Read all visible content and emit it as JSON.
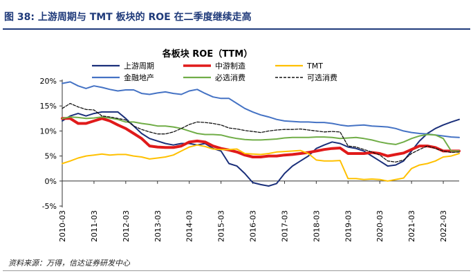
{
  "figure": {
    "label": "图 38: 上游周期与 TMT 板块的 ROE 在二季度继续走高",
    "source": "资料来源：万得，信达证券研发中心"
  },
  "chart_data": {
    "type": "line",
    "title": "各板块 ROE（TTM）",
    "xlabel": "",
    "ylabel": "",
    "ylim": [
      -5,
      20
    ],
    "yticks": [
      "20%",
      "15%",
      "10%",
      "5%",
      "0%",
      "-5%"
    ],
    "ytick_values": [
      20,
      15,
      10,
      5,
      0,
      -5
    ],
    "grid": false,
    "legend_position": "top",
    "x_start": "2010-03",
    "x_end": "2022-06",
    "x_tick_labels": [
      "2010-03",
      "2011-03",
      "2012-03",
      "2013-03",
      "2014-03",
      "2015-03",
      "2016-03",
      "2017-03",
      "2018-03",
      "2019-03",
      "2020-03",
      "2021-03",
      "2022-03"
    ],
    "series": [
      {
        "name": "上游周期",
        "color": "#1a2f7a",
        "dash": "solid",
        "width": 2,
        "values": [
          12,
          13,
          13.5,
          13,
          13.5,
          13.8,
          13.8,
          13.8,
          12.5,
          11,
          9.5,
          8.5,
          8,
          7.5,
          7.2,
          7.5,
          7.5,
          7.2,
          7.5,
          6.5,
          6,
          3.5,
          3,
          1.5,
          -0.3,
          -0.7,
          -1,
          -0.5,
          1.5,
          3,
          4,
          5,
          6.5,
          7.2,
          7.8,
          7.5,
          6.8,
          6.5,
          6,
          5,
          4,
          3,
          3.2,
          4,
          6,
          8,
          9.5,
          10.5,
          11.2,
          11.8,
          12.3
        ]
      },
      {
        "name": "中游制造",
        "color": "#e01a1a",
        "dash": "solid",
        "width": 4,
        "values": [
          12.5,
          12.5,
          11.5,
          11.5,
          12,
          12.5,
          12,
          11.2,
          10.5,
          9.5,
          8.5,
          7,
          6.8,
          6.7,
          6.7,
          7,
          7.8,
          8,
          7.8,
          7,
          6.5,
          6.2,
          5.8,
          5.2,
          4.8,
          4.8,
          5,
          5,
          5.2,
          5.3,
          5.5,
          5.7,
          6,
          6.3,
          6.5,
          6.6,
          5.5,
          5.5,
          5.5,
          5.7,
          5.5,
          5,
          5.3,
          5.6,
          6.3,
          7,
          7,
          6.7,
          6,
          6,
          6
        ]
      },
      {
        "name": "TMT",
        "color": "#ffc000",
        "dash": "solid",
        "width": 2,
        "values": [
          3.5,
          4,
          4.6,
          5,
          5.2,
          5.4,
          5.2,
          5.3,
          5.3,
          5,
          4.8,
          4.4,
          4.6,
          4.8,
          5.2,
          6,
          6.8,
          7.2,
          6.9,
          6.4,
          6.3,
          6.3,
          6.4,
          5.5,
          5.4,
          5.3,
          5.5,
          5.8,
          5.9,
          6,
          6.1,
          5.5,
          4.2,
          4,
          4,
          4.1,
          0.5,
          0.5,
          0.3,
          0.4,
          0.3,
          0,
          0.3,
          0.6,
          2.5,
          3.2,
          3.5,
          4,
          4.8,
          5,
          5.5
        ]
      },
      {
        "name": "金融地产",
        "color": "#4472c4",
        "dash": "solid",
        "width": 2,
        "values": [
          19.5,
          19.8,
          19,
          18.5,
          19,
          18.7,
          18.3,
          18,
          18.2,
          18.2,
          17.5,
          17.3,
          17.6,
          17.8,
          17.5,
          17.3,
          18,
          18.3,
          17.5,
          16.8,
          16.5,
          16.5,
          15.5,
          14.5,
          13.8,
          13.2,
          12.8,
          12.3,
          12,
          11.9,
          11.8,
          11.8,
          11.7,
          11.7,
          11.5,
          11.2,
          11,
          11.1,
          11.2,
          11,
          10.9,
          10.8,
          10.5,
          10,
          9.7,
          9.5,
          9.4,
          9.2,
          9,
          8.8,
          8.7
        ]
      },
      {
        "name": "必选消费",
        "color": "#70ad47",
        "dash": "solid",
        "width": 2,
        "values": [
          12.5,
          12.8,
          12.7,
          12.5,
          12.6,
          12.8,
          12.6,
          12.3,
          11.8,
          11.8,
          11.5,
          11.3,
          11,
          11,
          10.8,
          10.5,
          10,
          9.5,
          9.3,
          9.3,
          9.2,
          8.8,
          8.5,
          8.3,
          8.2,
          8.2,
          8.3,
          8.4,
          8.6,
          8.7,
          8.7,
          8.7,
          8.8,
          8.8,
          8.7,
          8.5,
          8.6,
          8.7,
          8.5,
          8.2,
          7.8,
          7.5,
          7.3,
          7.8,
          8.5,
          9,
          9.3,
          9.2,
          8.5,
          6,
          6
        ]
      },
      {
        "name": "可选消费",
        "color": "#111111",
        "dash": "4,2",
        "width": 1.3,
        "values": [
          14.5,
          15.5,
          14.8,
          14.3,
          14.2,
          13,
          12.8,
          12.5,
          12.2,
          11,
          10.3,
          9.8,
          9.4,
          9.4,
          9.8,
          10.5,
          11.3,
          11.8,
          11.7,
          11.5,
          11.2,
          10.6,
          10.4,
          10.1,
          9.9,
          9.7,
          10,
          10.2,
          10.3,
          10.3,
          10.4,
          10.2,
          10,
          9.8,
          9.9,
          9.8,
          7,
          6.8,
          6.3,
          5.8,
          5.2,
          4,
          3.8,
          4.2,
          5.5,
          6.3,
          7,
          6.5,
          6,
          5.7,
          5.8
        ]
      }
    ]
  }
}
